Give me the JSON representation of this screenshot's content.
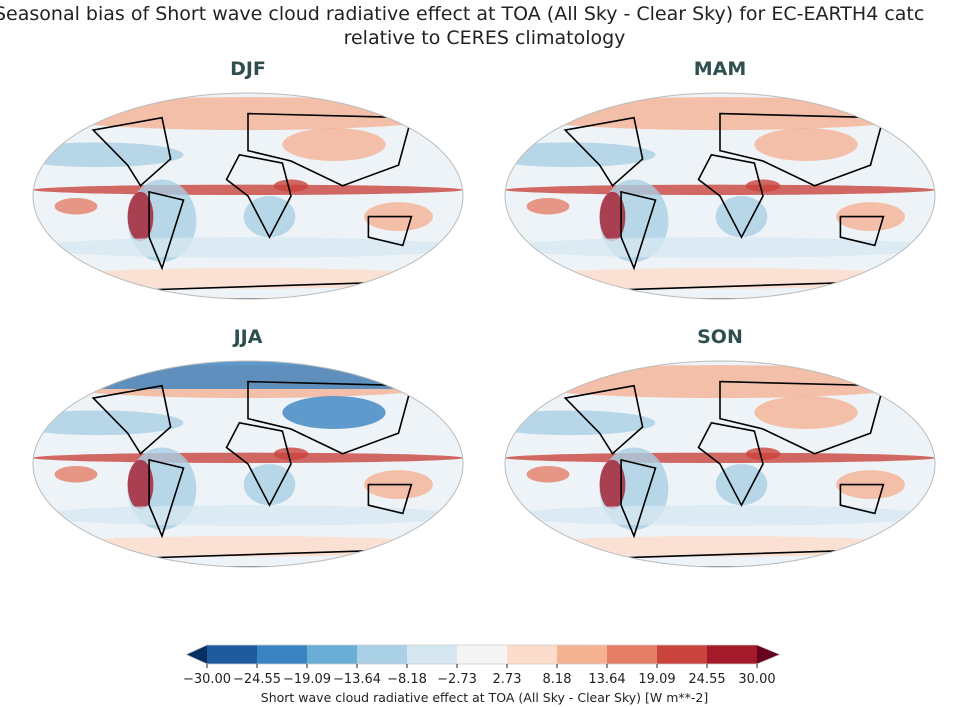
{
  "title_line1": "Seasonal bias of Short wave cloud radiative effect at TOA (All Sky - Clear Sky) for EC-EARTH4 catc",
  "title_line2": "relative to CERES climatology",
  "panels": [
    "DJF",
    "MAM",
    "JJA",
    "SON"
  ],
  "chart_data": {
    "type": "heatmap",
    "projection": "Robinson",
    "colorbar": {
      "label": "Short wave cloud radiative effect at TOA (All Sky - Clear Sky) [W m**-2]",
      "ticks": [
        "-30.00",
        "-24.55",
        "-19.09",
        "-13.64",
        "-8.18",
        "-2.73",
        "2.73",
        "8.18",
        "13.64",
        "19.09",
        "24.55",
        "30.00"
      ],
      "range": [
        -30,
        30
      ],
      "extend": "both",
      "colors": [
        "#053061",
        "#2166ac",
        "#4393c3",
        "#92c5de",
        "#d1e5f0",
        "#f7f7f7",
        "#fddbc7",
        "#f4a582",
        "#d6604d",
        "#b2182b",
        "#67001f"
      ],
      "bin_colors": [
        "#1f5b9c",
        "#3983c0",
        "#6aaed6",
        "#a9d0e5",
        "#d6e7f1",
        "#f5f5f5",
        "#fcdcca",
        "#f5b293",
        "#e47e66",
        "#c9443c",
        "#a51a2a"
      ]
    }
  }
}
